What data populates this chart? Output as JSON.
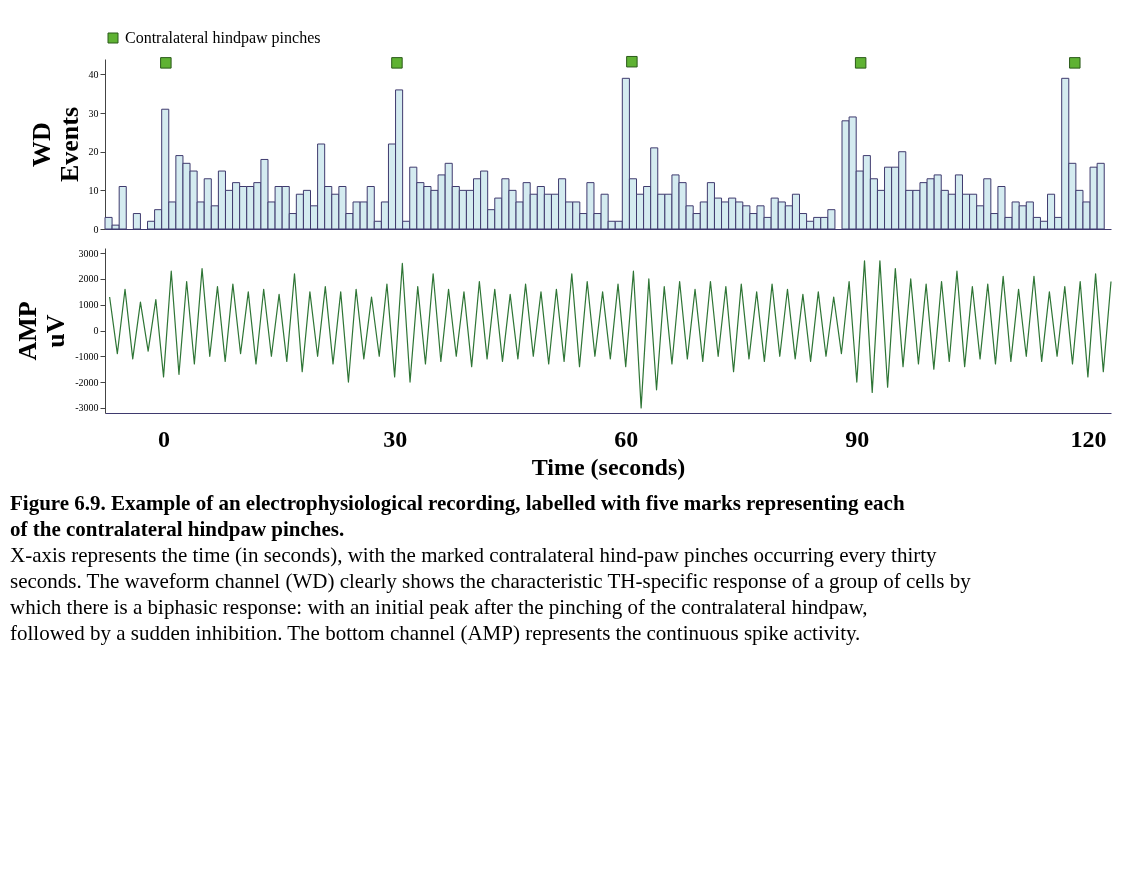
{
  "chart_data": [
    {
      "type": "histogram",
      "ylabel": "WD Events",
      "legend": "top left",
      "tick_labels": "y",
      "grid": false,
      "bins": [
        -7.6,
        -6.68,
        -5.76,
        -4.84,
        -3.92,
        -3,
        -2.08,
        -1.16,
        -0.24,
        0.68,
        1.6,
        2.52,
        3.44,
        4.36,
        5.28,
        6.2,
        7.12,
        8.04,
        8.96,
        9.88,
        10.8,
        11.72,
        12.64,
        13.56,
        14.48,
        15.4,
        16.32,
        17.24,
        18.16,
        19.08,
        20,
        20.92,
        21.84,
        22.76,
        23.68,
        24.6,
        25.52,
        26.44,
        27.36,
        28.28,
        29.2,
        30.12,
        31.04,
        31.96,
        32.88,
        33.8,
        34.72,
        35.64,
        36.56,
        37.48,
        38.4,
        39.32,
        40.24,
        41.16,
        42.08,
        43,
        43.92,
        44.84,
        45.76,
        46.68,
        47.6,
        48.52,
        49.44,
        50.36,
        51.28,
        52.2,
        53.12,
        54.04,
        54.96,
        55.88,
        56.8,
        57.72,
        58.64,
        59.56,
        60.48,
        61.4,
        62.32,
        63.24,
        64.16,
        65.08,
        66,
        66.92,
        67.84,
        68.76,
        69.68,
        70.6,
        71.52,
        72.44,
        73.36,
        74.28,
        75.2,
        76.12,
        77.04,
        77.96,
        78.88,
        79.8,
        80.72,
        81.64,
        82.56,
        83.48,
        84.4,
        85.32,
        86.24,
        87.16,
        88.08,
        89,
        89.92,
        90.84,
        91.76,
        92.68,
        93.6,
        94.52,
        95.44,
        96.36,
        97.28,
        98.2,
        99.12,
        100.04,
        100.96,
        101.88,
        102.8,
        103.72,
        104.64,
        105.56,
        106.48,
        107.4,
        108.32,
        109.24,
        110.16,
        111.08,
        112,
        112.92,
        113.84,
        114.76,
        115.68,
        116.6,
        117.52,
        118.44,
        119.36,
        120.28,
        121.2,
        122.12
      ],
      "series": [
        {
          "type": "histogram",
          "color": "#d4ebf0",
          "values": [
            3,
            1,
            11,
            0,
            4,
            0,
            2,
            5,
            31,
            7,
            19,
            17,
            15,
            7,
            13,
            6,
            15,
            10,
            12,
            11,
            11,
            12,
            18,
            7,
            11,
            11,
            4,
            9,
            10,
            6,
            22,
            11,
            9,
            11,
            4,
            7,
            7,
            11,
            2,
            7,
            22,
            36,
            2,
            16,
            12,
            11,
            10,
            14,
            17,
            11,
            10,
            10,
            13,
            15,
            5,
            8,
            13,
            10,
            7,
            12,
            9,
            11,
            9,
            9,
            13,
            7,
            7,
            4,
            12,
            4,
            9,
            2,
            2,
            39,
            13,
            9,
            11,
            21,
            9,
            9,
            14,
            12,
            6,
            4,
            7,
            12,
            8,
            7,
            8,
            7,
            6,
            4,
            6,
            3,
            8,
            7,
            6,
            9,
            4,
            2,
            3,
            3,
            5,
            0,
            28,
            29,
            15,
            19,
            13,
            10,
            16,
            16,
            20,
            10,
            10,
            12,
            13,
            14,
            10,
            9,
            14,
            9,
            9,
            6,
            13,
            4,
            11,
            3,
            7,
            6,
            7,
            3,
            2,
            9,
            3,
            39,
            17,
            10,
            7,
            16,
            17
          ]
        },
        {
          "type": "scatter",
          "name": "Contralateral hindpaw pinches",
          "color": "#5fb233",
          "marker": "square",
          "x": [
            0.3,
            30.3,
            60.8,
            90.5,
            118.3
          ],
          "values": [
            43,
            43,
            43.3,
            43,
            43
          ]
        }
      ],
      "xlim": [
        -7.6,
        123
      ],
      "ylim": [
        0,
        44
      ],
      "yticks": [
        0,
        10,
        20,
        30,
        40
      ]
    },
    {
      "type": "line",
      "ylabel": "AMP uV",
      "xlabel": "Time (seconds)",
      "grid": false,
      "marker": "none",
      "line_style": "solid",
      "x": [
        -7,
        -6,
        -5,
        -4,
        -3,
        -2,
        -1,
        0,
        1,
        2,
        3,
        4,
        5,
        6,
        7,
        8,
        9,
        10,
        11,
        12,
        13,
        14,
        15,
        16,
        17,
        18,
        19,
        20,
        21,
        22,
        23,
        24,
        25,
        26,
        27,
        28,
        29,
        30,
        31,
        32,
        33,
        34,
        35,
        36,
        37,
        38,
        39,
        40,
        41,
        42,
        43,
        44,
        45,
        46,
        47,
        48,
        49,
        50,
        51,
        52,
        53,
        54,
        55,
        56,
        57,
        58,
        59,
        60,
        61,
        62,
        63,
        64,
        65,
        66,
        67,
        68,
        69,
        70,
        71,
        72,
        73,
        74,
        75,
        76,
        77,
        78,
        79,
        80,
        81,
        82,
        83,
        84,
        85,
        86,
        87,
        88,
        89,
        90,
        91,
        92,
        93,
        94,
        95,
        96,
        97,
        98,
        99,
        100,
        101,
        102,
        103,
        104,
        105,
        106,
        107,
        108,
        109,
        110,
        111,
        112,
        113,
        114,
        115,
        116,
        117,
        118,
        119,
        120,
        121,
        122,
        123
      ],
      "series": [
        {
          "color": "#2e7535",
          "values": [
            1300,
            -900,
            1600,
            -1100,
            1100,
            -800,
            1200,
            -1800,
            2300,
            -1700,
            1900,
            -1300,
            2400,
            -1000,
            1700,
            -1200,
            1800,
            -900,
            1500,
            -1300,
            1600,
            -1000,
            1400,
            -1200,
            2200,
            -1600,
            1500,
            -1000,
            1700,
            -1300,
            1500,
            -2000,
            1600,
            -1100,
            1300,
            -1000,
            1800,
            -1800,
            2600,
            -2000,
            1700,
            -1300,
            2200,
            -1200,
            1600,
            -1000,
            1500,
            -1400,
            1900,
            -1100,
            1600,
            -1200,
            1400,
            -1100,
            1800,
            -1000,
            1500,
            -1300,
            1600,
            -1200,
            2200,
            -1400,
            1900,
            -1000,
            1500,
            -1100,
            1800,
            -1400,
            2300,
            -3000,
            2000,
            -2300,
            1700,
            -1300,
            1900,
            -1100,
            1600,
            -1200,
            1900,
            -1000,
            1700,
            -1600,
            1800,
            -1100,
            1500,
            -1200,
            1800,
            -1000,
            1600,
            -1100,
            1400,
            -1200,
            1500,
            -1000,
            1300,
            -900,
            1900,
            -2000,
            2700,
            -2400,
            2700,
            -2200,
            2400,
            -1400,
            2000,
            -1300,
            1800,
            -1500,
            1900,
            -1200,
            2300,
            -1400,
            1700,
            -1100,
            1800,
            -1300,
            2100,
            -1200,
            1600,
            -1000,
            2100,
            -1200,
            1500,
            -1000,
            1700,
            -1300,
            1900,
            -1800,
            2200,
            -1600,
            1900
          ]
        }
      ],
      "xlim": [
        -7.6,
        123
      ],
      "xticks": [
        0,
        30,
        60,
        90,
        120
      ],
      "ylim": [
        -3200,
        3200
      ],
      "yticks": [
        -3000,
        -2000,
        -1000,
        0,
        1000,
        2000,
        3000
      ],
      "annotations": [
        "Figure 6.9. Example of an electrophysiological recording, labelled with five marks representing each of the contralateral hindpaw pinches.",
        "X-axis represents the time (in seconds), with the marked contralateral hind-paw pinches occurring every thirty seconds. The waveform channel (WD) clearly shows the characteristic TH-specific response of a group of cells by which there is a biphasic response: with an initial peak after the pinching of the contralateral hindpaw, followed by a sudden inhibition. The bottom channel (AMP) represents the continuous spike activity."
      ]
    }
  ]
}
